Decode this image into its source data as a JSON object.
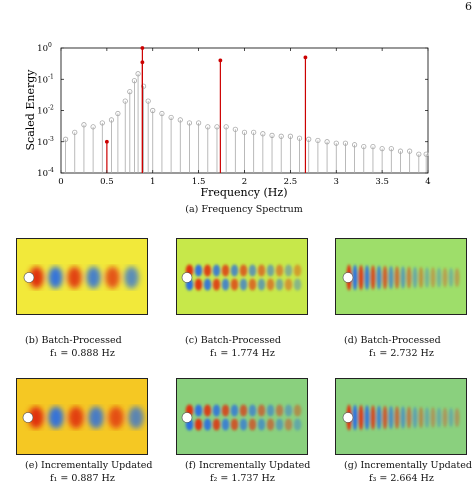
{
  "page_number": "6",
  "spectrum": {
    "caption": "(a) Frequency Spectrum",
    "chart_data": {
      "type": "scatter",
      "xlabel": "Frequency (Hz)",
      "ylabel": "Scaled Energy",
      "xlim": [
        0,
        4
      ],
      "ylim": [
        0.0001,
        1
      ],
      "yscale": "log",
      "x_ticks": [
        "0",
        "0.5",
        "1",
        "1.5",
        "2",
        "2.5",
        "3",
        "3.5",
        "4"
      ],
      "y_ticks": [
        "10^0",
        "10^-1",
        "10^-2",
        "10^-3",
        "10^-4"
      ],
      "grid": false,
      "series": [
        {
          "style": "stem",
          "color": "#cc0000",
          "x": [
            0.5,
            0.887,
            0.887,
            1.737,
            2.664
          ],
          "y": [
            0.001,
            1.0,
            0.35,
            0.4,
            0.5
          ]
        }
      ],
      "background": {
        "style": "stem-circles",
        "color": "#a8a8a8",
        "x": [
          0.05,
          0.15,
          0.25,
          0.35,
          0.45,
          0.55,
          0.62,
          0.7,
          0.75,
          0.8,
          0.84,
          0.9,
          0.95,
          1.0,
          1.1,
          1.2,
          1.3,
          1.4,
          1.5,
          1.6,
          1.7,
          1.8,
          1.9,
          2.0,
          2.1,
          2.2,
          2.3,
          2.4,
          2.5,
          2.6,
          2.7,
          2.8,
          2.9,
          3.0,
          3.1,
          3.2,
          3.3,
          3.4,
          3.5,
          3.6,
          3.7,
          3.8,
          3.9,
          3.98
        ],
        "y": [
          0.0012,
          0.002,
          0.0035,
          0.003,
          0.004,
          0.005,
          0.008,
          0.02,
          0.04,
          0.09,
          0.15,
          0.06,
          0.02,
          0.01,
          0.008,
          0.006,
          0.005,
          0.004,
          0.004,
          0.003,
          0.003,
          0.003,
          0.0025,
          0.002,
          0.002,
          0.0018,
          0.0016,
          0.0015,
          0.0015,
          0.0013,
          0.0012,
          0.0011,
          0.001,
          0.0009,
          0.0009,
          0.0008,
          0.0007,
          0.0007,
          0.0006,
          0.0006,
          0.0005,
          0.0005,
          0.0004,
          0.0004
        ]
      }
    }
  },
  "modes": [
    {
      "caption": "(b) Batch-Processed",
      "freq": "f₁ = 0.888 Hz",
      "background": "#f2e93a",
      "blob_wavelength": 19,
      "x0": 10,
      "rows": 1,
      "noise": 0
    },
    {
      "caption": "(c) Batch-Processed",
      "freq": "f₁ = 1.774 Hz",
      "background": "#c7e84a",
      "blob_wavelength": 9,
      "x0": 8,
      "rows": 2,
      "noise": 1
    },
    {
      "caption": "(d) Batch-Processed",
      "freq": "f₁ = 2.732 Hz",
      "background": "#9ede6a",
      "blob_wavelength": 6,
      "x0": 10,
      "rows": 1,
      "noise": 1
    },
    {
      "caption": "(e) Incrementally Updated",
      "freq": "f₁ = 0.887 Hz",
      "background": "#f5c823",
      "blob_wavelength": 20,
      "x0": 9,
      "rows": 1,
      "noise": 0
    },
    {
      "caption": "(f) Incrementally Updated",
      "freq": "f₂ = 1.737 Hz",
      "background": "#8ad07e",
      "blob_wavelength": 9,
      "x0": 8,
      "rows": 2,
      "noise": 0
    },
    {
      "caption": "(g) Incrementally Updated",
      "freq": "f₃ = 2.664 Hz",
      "background": "#8ad07e",
      "blob_wavelength": 6,
      "x0": 10,
      "rows": 1,
      "noise": 0
    }
  ]
}
